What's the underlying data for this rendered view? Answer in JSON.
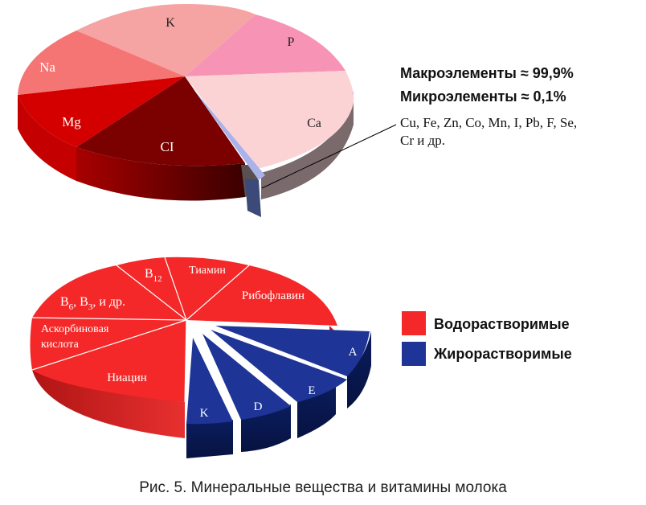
{
  "caption": "Рис. 5. Минеральные вещества и витамины молока",
  "chart_data": [
    {
      "type": "pie",
      "labels": [
        "K",
        "P",
        "Ca",
        "CI",
        "Mg",
        "Na"
      ],
      "colors": [
        "#f6a3a3",
        "#f794b6",
        "#fbd3d5",
        "#7b0000",
        "#d40000",
        "#f57575"
      ],
      "exploded_slice": {
        "label": "",
        "color": "#a9b3ea"
      },
      "annotations": {
        "macro": "Макроэлементы ≈ 99,9%",
        "micro": "Микроэлементы ≈ 0,1%",
        "micro_list_line1": "Cu, Fe, Zn, Co, Mn, I, Pb, F, Se,",
        "micro_list_line2": "Cr и др."
      }
    },
    {
      "type": "pie",
      "labels": [
        "B",
        "Тиамин",
        "Рибофлавин",
        "A",
        "E",
        "D",
        "K",
        "Ниацин",
        "Аскорбиновая",
        "кислота",
        "B",
        ", B",
        ", и др."
      ],
      "subscripts": {
        "b12": "12",
        "b6": "6",
        "b3": "3"
      },
      "legend": [
        {
          "name": "Водорастворимые",
          "color": "#f42828"
        },
        {
          "name": "Жирорастворимые",
          "color": "#1e3496"
        }
      ]
    }
  ]
}
